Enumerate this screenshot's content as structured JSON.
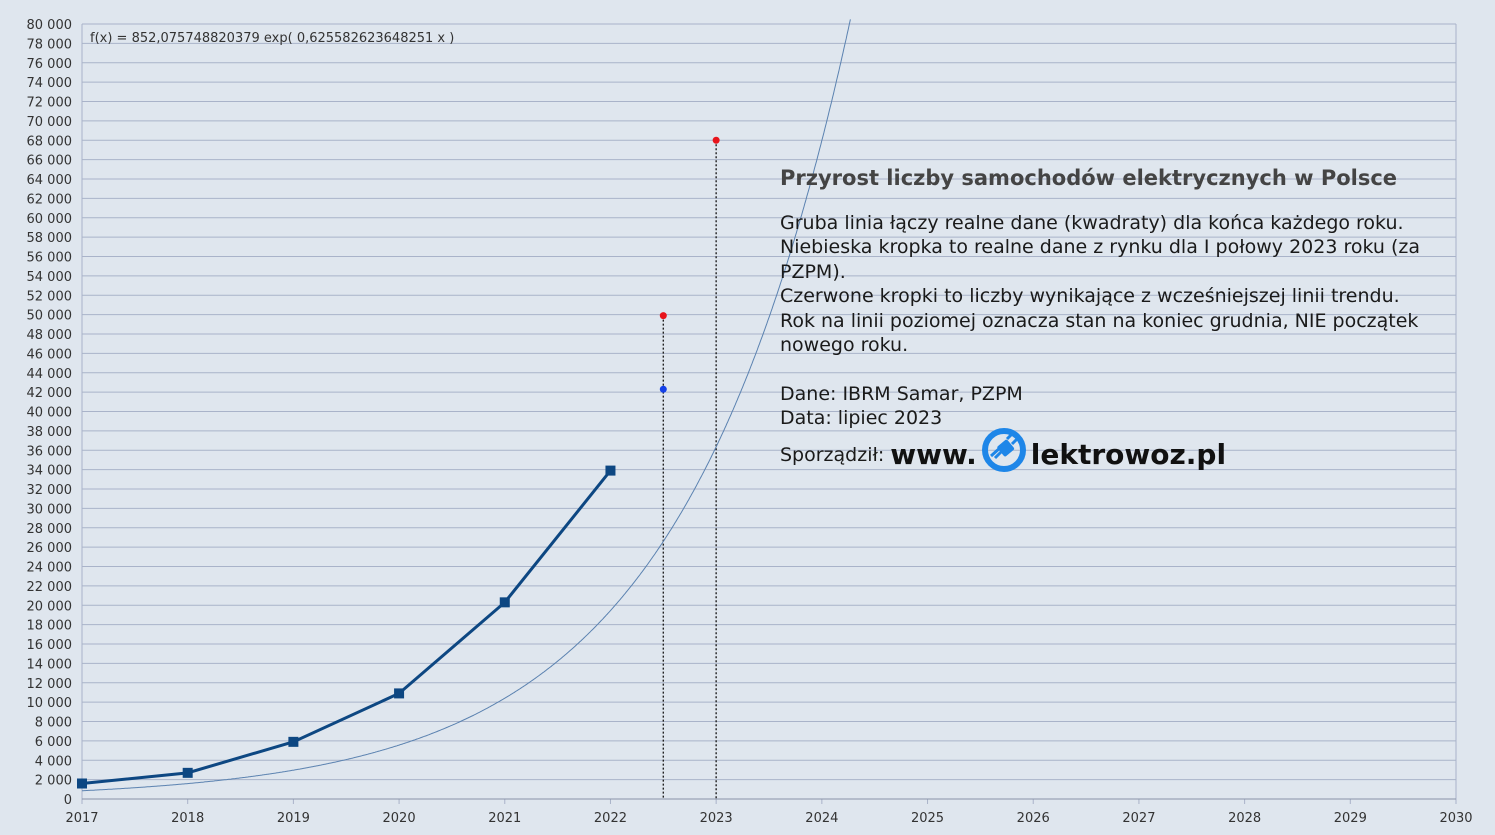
{
  "chart_data": {
    "type": "line",
    "formula": "f(x) = 852,075748820379 exp( 0,625582623648251 x )",
    "trend": {
      "a": 852.075748820379,
      "b": 0.625582623648251,
      "x_origin": 2017
    },
    "x_ticks": [
      "2017",
      "2018",
      "2019",
      "2020",
      "2021",
      "2022",
      "2023",
      "2024",
      "2025",
      "2026",
      "2027",
      "2028",
      "2029",
      "2030"
    ],
    "y_ticks": [
      "0",
      "2 000",
      "4 000",
      "6 000",
      "8 000",
      "10 000",
      "12 000",
      "14 000",
      "16 000",
      "18 000",
      "20 000",
      "22 000",
      "24 000",
      "26 000",
      "28 000",
      "30 000",
      "32 000",
      "34 000",
      "36 000",
      "38 000",
      "40 000",
      "42 000",
      "44 000",
      "46 000",
      "48 000",
      "50 000",
      "52 000",
      "54 000",
      "56 000",
      "58 000",
      "60 000",
      "62 000",
      "64 000",
      "66 000",
      "68 000",
      "70 000",
      "72 000",
      "74 000",
      "76 000",
      "78 000",
      "80 000"
    ],
    "xlim": [
      2017,
      2030
    ],
    "ylim": [
      0,
      80000
    ],
    "grid": true,
    "series": [
      {
        "values": [
          [
            2017,
            1600
          ],
          [
            2018,
            2700
          ],
          [
            2019,
            5900
          ],
          [
            2020,
            10900
          ],
          [
            2021,
            20300
          ],
          [
            2022,
            33900
          ]
        ]
      }
    ],
    "points": [
      {
        "x": 2022.5,
        "y": 49900,
        "color": "#e8141c"
      },
      {
        "x": 2022.5,
        "y": 42300,
        "color": "#1440e8"
      },
      {
        "x": 2023,
        "y": 68000,
        "color": "#e8141c"
      }
    ],
    "dotted_lines_x": [
      2022.5,
      2023
    ]
  },
  "colors": {
    "background": "#dfe6ee",
    "grid": "#a9b3c9",
    "series": "#0d4782",
    "trend": "#5b82b0",
    "red_point": "#e8141c",
    "blue_point": "#1440e8",
    "logo": "#1e86e8"
  },
  "info": {
    "title": "Przyrost liczby samochodów elektrycznych w Polsce",
    "line1": "Gruba linia łączy realne dane (kwadraty) dla końca każdego roku.",
    "line2": "Niebieska kropka to realne dane z rynku dla I połowy 2023 roku (za PZPM).",
    "line3": "Czerwone kropki to liczby wynikające z wcześniejszej linii trendu.",
    "line4": "Rok na linii poziomej oznacza stan na koniec grudnia, NIE początek nowego roku.",
    "source": "Dane: IBRM Samar, PZPM",
    "date": "Data: lipiec 2023",
    "author_label": "Sporządził:",
    "logo_prefix": "www.",
    "logo_suffix": "lektrowoz.pl",
    "logo_icon": "plug-icon"
  }
}
